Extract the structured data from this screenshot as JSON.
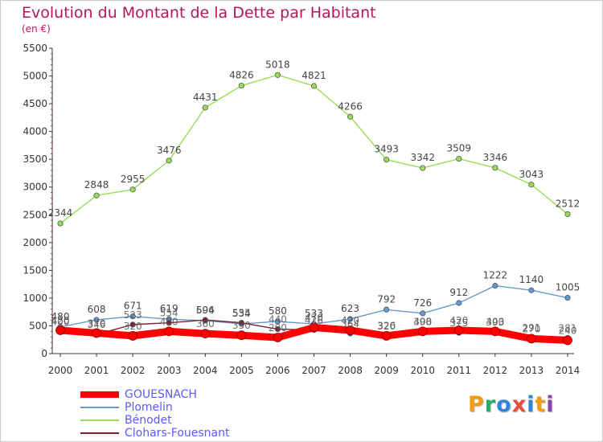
{
  "title": "Evolution du Montant de la Dette par Habitant",
  "subtitle": "(en €)",
  "brand": {
    "letters": [
      {
        "ch": "P",
        "color": "#f39c12"
      },
      {
        "ch": "r",
        "color": "#27ae60"
      },
      {
        "ch": "o",
        "color": "#2e86de"
      },
      {
        "ch": "x",
        "color": "#e74c3c"
      },
      {
        "ch": "i",
        "color": "#2e86de"
      },
      {
        "ch": "t",
        "color": "#f39c12"
      },
      {
        "ch": "i",
        "color": "#8e44ad"
      }
    ]
  },
  "chart_data": {
    "type": "line",
    "x": [
      "2000",
      "2001",
      "2002",
      "2003",
      "2004",
      "2005",
      "2006",
      "2007",
      "2008",
      "2009",
      "2010",
      "2011",
      "2012",
      "2013",
      "2014"
    ],
    "y_ticks": [
      0,
      500,
      1000,
      1500,
      2000,
      2500,
      3000,
      3500,
      4000,
      4500,
      5000,
      5500
    ],
    "ylim": [
      0,
      5500
    ],
    "grid": false,
    "legend_position": "bottom-left",
    "series": [
      {
        "name": "GOUESNACH",
        "color": "#ff0000",
        "label_color": "#777777",
        "show_labels": false,
        "values": [
          420,
          370,
          320,
          400,
          360,
          330,
          290,
          470,
          420,
          320,
          400,
          420,
          400,
          270,
          240
        ]
      },
      {
        "name": "Plomelin",
        "color": "#6699cc",
        "label_color": "#777777",
        "show_labels": true,
        "values": [
          480,
          608,
          671,
          619,
          594,
          534,
          580,
          533,
          623,
          792,
          726,
          912,
          1222,
          1140,
          1005
        ]
      },
      {
        "name": "Bénodet",
        "color": "#99dd55",
        "label_color": "#777777",
        "show_labels": true,
        "values": [
          2344,
          2848,
          2955,
          3476,
          4431,
          4826,
          5018,
          4821,
          4266,
          3493,
          3342,
          3509,
          3346,
          3043,
          2512
        ]
      },
      {
        "name": "Clohars-Fouesnant",
        "color": "#7a2030",
        "label_color": "#777777",
        "show_labels": false,
        "values": [
          400,
          346,
          523,
          554,
          606,
          555,
          440,
          426,
          364,
          326,
          398,
          375,
          393,
          291,
          281
        ]
      }
    ]
  }
}
